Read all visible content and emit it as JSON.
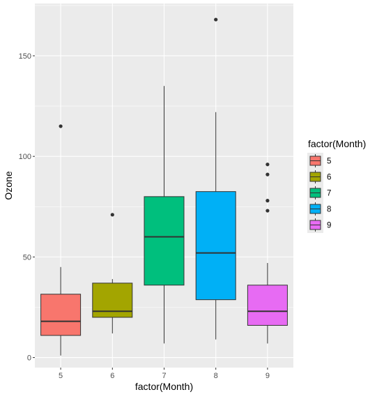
{
  "chart_data": {
    "type": "box",
    "xlabel": "factor(Month)",
    "ylabel": "Ozone",
    "categories": [
      "5",
      "6",
      "7",
      "8",
      "9"
    ],
    "yticks": [
      0,
      50,
      100,
      150
    ],
    "ylim": [
      -5,
      176
    ],
    "grid": true,
    "legend": {
      "title": "factor(Month)",
      "position": "right",
      "entries": [
        "5",
        "6",
        "7",
        "8",
        "9"
      ]
    },
    "boxes": [
      {
        "category": "5",
        "whisker_low": 1,
        "q1": 11,
        "median": 18,
        "q3": 31.5,
        "whisker_high": 45,
        "outliers": [
          115
        ],
        "color": "#F8766D"
      },
      {
        "category": "6",
        "whisker_low": 12,
        "q1": 20,
        "median": 23,
        "q3": 37,
        "whisker_high": 39,
        "outliers": [
          71
        ],
        "color": "#A3A500"
      },
      {
        "category": "7",
        "whisker_low": 7,
        "q1": 36,
        "median": 60,
        "q3": 80,
        "whisker_high": 135,
        "outliers": [],
        "color": "#00BF7D"
      },
      {
        "category": "8",
        "whisker_low": 9,
        "q1": 28.75,
        "median": 52,
        "q3": 82.5,
        "whisker_high": 122,
        "outliers": [
          168
        ],
        "color": "#00B0F6"
      },
      {
        "category": "9",
        "whisker_low": 7,
        "q1": 16,
        "median": 23,
        "q3": 36,
        "whisker_high": 47,
        "outliers": [
          73,
          78,
          91,
          96
        ],
        "color": "#E76BF3"
      }
    ],
    "colors": {
      "panel_background": "#EBEBEB",
      "grid_major": "#FFFFFF",
      "box_outline": "#333333",
      "point": "#333333"
    }
  }
}
